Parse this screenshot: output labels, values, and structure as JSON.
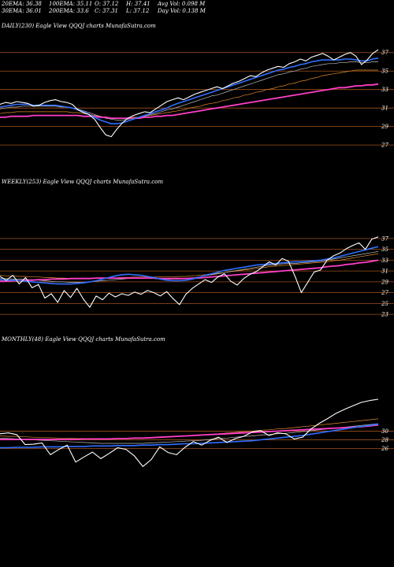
{
  "header": {
    "ema20": "20EMA: 36.38",
    "ema100": "100EMA: 35.11",
    "open": "O: 37.12",
    "high": "H: 37.41",
    "avgvol": "Avg Vol: 0.098 M",
    "ema30": "30EMA: 36.01",
    "ema200": "200EMA: 33.6",
    "close": "C: 37.31",
    "low": "L: 37.12",
    "dayvol": "Day Vol: 0.138 M"
  },
  "colors": {
    "background": "#000000",
    "price": "#ffffff",
    "ema_blue": "#2f6fff",
    "ema_magenta": "#ff3ec8",
    "ema_orange": "#e08a2c",
    "ema_grey": "#bfbfbf",
    "level_line": "#a0521e"
  },
  "chart_data": [
    {
      "type": "line",
      "title": "DAILY(230) Eagle View QQQJ charts MunafaSutra.com",
      "yticks": [
        37,
        35,
        33,
        31,
        29,
        27
      ],
      "ylim": [
        26.5,
        38
      ],
      "series": [
        {
          "role": "price",
          "values": [
            31.4,
            31.6,
            31.5,
            31.7,
            31.6,
            31.5,
            31.2,
            31.3,
            31.6,
            31.8,
            31.9,
            31.7,
            31.6,
            31.4,
            30.8,
            30.5,
            30.3,
            29.8,
            28.9,
            28.1,
            27.9,
            28.7,
            29.4,
            29.9,
            30.2,
            30.4,
            30.6,
            30.5,
            30.9,
            31.3,
            31.7,
            31.9,
            32.1,
            31.9,
            32.2,
            32.5,
            32.7,
            32.9,
            33.1,
            33.3,
            33.1,
            33.4,
            33.7,
            33.9,
            34.2,
            34.5,
            34.4,
            34.8,
            35.1,
            35.3,
            35.5,
            35.4,
            35.8,
            36.0,
            36.3,
            36.1,
            36.5,
            36.7,
            36.9,
            36.6,
            36.2,
            36.5,
            36.8,
            37.0,
            36.6,
            35.7,
            36.2,
            36.9,
            37.3
          ]
        },
        {
          "role": "ema_blue",
          "values": [
            31.1,
            31.2,
            31.3,
            31.4,
            31.4,
            31.4,
            31.3,
            31.3,
            31.3,
            31.3,
            31.3,
            31.2,
            31.1,
            31.0,
            30.8,
            30.6,
            30.3,
            30.0,
            29.7,
            29.5,
            29.3,
            29.3,
            29.4,
            29.6,
            29.8,
            30.0,
            30.2,
            30.4,
            30.6,
            30.8,
            31.0,
            31.3,
            31.5,
            31.7,
            31.9,
            32.1,
            32.3,
            32.5,
            32.7,
            32.9,
            33.1,
            33.3,
            33.5,
            33.7,
            33.9,
            34.1,
            34.3,
            34.5,
            34.7,
            34.9,
            35.1,
            35.2,
            35.4,
            35.5,
            35.7,
            35.8,
            36.0,
            36.1,
            36.2,
            36.2,
            36.2,
            36.2,
            36.3,
            36.3,
            36.2,
            36.1,
            36.1,
            36.3,
            36.4
          ]
        },
        {
          "role": "ema_grey",
          "values": [
            30.9,
            31.0,
            31.1,
            31.1,
            31.2,
            31.2,
            31.2,
            31.2,
            31.2,
            31.2,
            31.2,
            31.1,
            31.1,
            31.0,
            30.9,
            30.7,
            30.5,
            30.3,
            30.1,
            29.9,
            29.8,
            29.7,
            29.7,
            29.8,
            29.9,
            30.0,
            30.1,
            30.3,
            30.4,
            30.6,
            30.8,
            30.9,
            31.1,
            31.3,
            31.5,
            31.7,
            31.9,
            32.1,
            32.3,
            32.4,
            32.6,
            32.8,
            33.0,
            33.2,
            33.4,
            33.6,
            33.8,
            34.0,
            34.2,
            34.4,
            34.6,
            34.7,
            34.9,
            35.0,
            35.2,
            35.3,
            35.5,
            35.6,
            35.7,
            35.8,
            35.8,
            35.9,
            35.9,
            36.0,
            36.0,
            35.9,
            35.9,
            36.0,
            36.0
          ]
        },
        {
          "role": "ema_orange",
          "values": [
            30.4,
            30.5,
            30.5,
            30.6,
            30.6,
            30.6,
            30.6,
            30.6,
            30.6,
            30.6,
            30.6,
            30.6,
            30.6,
            30.5,
            30.5,
            30.4,
            30.3,
            30.2,
            30.1,
            30.0,
            29.9,
            29.9,
            29.9,
            29.9,
            30.0,
            30.0,
            30.1,
            30.2,
            30.3,
            30.4,
            30.5,
            30.6,
            30.7,
            30.8,
            31.0,
            31.1,
            31.2,
            31.4,
            31.5,
            31.6,
            31.8,
            31.9,
            32.1,
            32.2,
            32.4,
            32.5,
            32.7,
            32.8,
            33.0,
            33.1,
            33.3,
            33.4,
            33.6,
            33.7,
            33.9,
            34.0,
            34.2,
            34.3,
            34.5,
            34.6,
            34.7,
            34.8,
            34.9,
            35.0,
            35.1,
            35.1,
            35.1,
            35.1,
            35.1
          ]
        },
        {
          "role": "ema_magenta",
          "values": [
            30.0,
            30.0,
            30.1,
            30.1,
            30.1,
            30.1,
            30.2,
            30.2,
            30.2,
            30.2,
            30.2,
            30.2,
            30.2,
            30.2,
            30.2,
            30.1,
            30.1,
            30.1,
            30.0,
            30.0,
            29.9,
            29.9,
            29.9,
            29.9,
            29.9,
            29.9,
            30.0,
            30.0,
            30.1,
            30.1,
            30.2,
            30.2,
            30.3,
            30.4,
            30.5,
            30.6,
            30.7,
            30.8,
            30.9,
            31.0,
            31.1,
            31.2,
            31.3,
            31.4,
            31.5,
            31.6,
            31.7,
            31.8,
            31.9,
            32.0,
            32.1,
            32.2,
            32.3,
            32.4,
            32.5,
            32.6,
            32.7,
            32.8,
            32.9,
            33.0,
            33.1,
            33.2,
            33.2,
            33.3,
            33.4,
            33.4,
            33.5,
            33.5,
            33.6
          ]
        }
      ]
    },
    {
      "type": "line",
      "title": "WEEKLY(253) Eagle View QQQJ charts MunafaSutra.com",
      "yticks": [
        37,
        35,
        33,
        31,
        29,
        27,
        25,
        23
      ],
      "ylim": [
        22,
        38
      ],
      "series": [
        {
          "role": "price",
          "values": [
            30.0,
            29.3,
            30.2,
            28.6,
            29.8,
            27.9,
            28.5,
            26.0,
            26.8,
            25.2,
            27.4,
            26.1,
            27.8,
            25.8,
            24.3,
            26.4,
            25.7,
            26.9,
            26.2,
            26.8,
            26.5,
            27.1,
            26.7,
            27.4,
            27.0,
            26.4,
            27.2,
            25.9,
            24.8,
            26.7,
            27.8,
            28.6,
            29.4,
            28.9,
            29.9,
            30.5,
            29.1,
            28.4,
            29.6,
            30.4,
            30.9,
            31.8,
            32.7,
            32.1,
            33.3,
            32.8,
            30.1,
            27.0,
            28.9,
            30.8,
            31.2,
            33.0,
            33.8,
            34.3,
            35.1,
            35.7,
            36.2,
            35.0,
            36.9,
            37.3
          ]
        },
        {
          "role": "ema_blue",
          "values": [
            29.4,
            29.3,
            29.3,
            29.2,
            29.1,
            29.0,
            28.9,
            28.8,
            28.7,
            28.6,
            28.6,
            28.6,
            28.7,
            28.8,
            29.0,
            29.2,
            29.5,
            29.8,
            30.1,
            30.3,
            30.4,
            30.3,
            30.2,
            30.0,
            29.8,
            29.5,
            29.3,
            29.2,
            29.2,
            29.3,
            29.5,
            29.8,
            30.2,
            30.5,
            30.8,
            31.1,
            31.3,
            31.5,
            31.7,
            31.9,
            32.1,
            32.2,
            32.3,
            32.4,
            32.5,
            32.6,
            32.7,
            32.7,
            32.8,
            32.9,
            33.0,
            33.2,
            33.4,
            33.7,
            34.0,
            34.3,
            34.6,
            34.9,
            35.2,
            35.5
          ]
        },
        {
          "role": "ema_grey",
          "values": [
            29.6,
            29.6,
            29.5,
            29.5,
            29.4,
            29.4,
            29.3,
            29.2,
            29.1,
            29.0,
            29.0,
            28.9,
            28.9,
            28.9,
            29.0,
            29.1,
            29.2,
            29.3,
            29.4,
            29.5,
            29.6,
            29.6,
            29.6,
            29.6,
            29.6,
            29.5,
            29.5,
            29.5,
            29.5,
            29.6,
            29.7,
            29.9,
            30.1,
            30.3,
            30.5,
            30.7,
            30.9,
            31.1,
            31.3,
            31.5,
            31.7,
            31.9,
            32.1,
            32.2,
            32.3,
            32.4,
            32.4,
            32.5,
            32.6,
            32.7,
            32.8,
            33.0,
            33.2,
            33.4,
            33.6,
            33.8,
            34.0,
            34.2,
            34.4,
            34.6
          ]
        },
        {
          "role": "ema_orange",
          "values": [
            30.2,
            30.1,
            30.1,
            30.0,
            30.0,
            29.9,
            29.9,
            29.8,
            29.8,
            29.7,
            29.7,
            29.6,
            29.6,
            29.6,
            29.6,
            29.6,
            29.6,
            29.7,
            29.7,
            29.8,
            29.8,
            29.9,
            29.9,
            29.9,
            29.9,
            29.9,
            29.9,
            29.9,
            30.0,
            30.0,
            30.1,
            30.2,
            30.3,
            30.4,
            30.6,
            30.7,
            30.9,
            31.0,
            31.2,
            31.3,
            31.5,
            31.6,
            31.8,
            31.9,
            32.0,
            32.1,
            32.2,
            32.3,
            32.4,
            32.5,
            32.6,
            32.7,
            32.9,
            33.0,
            33.2,
            33.4,
            33.6,
            33.8,
            34.0,
            34.2
          ]
        },
        {
          "role": "ema_magenta",
          "values": [
            29.1,
            29.1,
            29.2,
            29.2,
            29.3,
            29.3,
            29.4,
            29.4,
            29.5,
            29.5,
            29.5,
            29.6,
            29.6,
            29.6,
            29.6,
            29.7,
            29.7,
            29.7,
            29.7,
            29.7,
            29.7,
            29.7,
            29.7,
            29.7,
            29.7,
            29.6,
            29.6,
            29.6,
            29.6,
            29.6,
            29.7,
            29.7,
            29.8,
            29.9,
            30.0,
            30.1,
            30.2,
            30.3,
            30.4,
            30.5,
            30.6,
            30.7,
            30.8,
            30.9,
            31.0,
            31.1,
            31.2,
            31.3,
            31.4,
            31.5,
            31.6,
            31.8,
            31.9,
            32.0,
            32.2,
            32.3,
            32.5,
            32.6,
            32.8,
            33.0
          ]
        }
      ]
    },
    {
      "type": "line",
      "title": "MONTHLY(48) Eagle View QQQJ charts MunafaSutra.com",
      "yticks": [
        30,
        28,
        26
      ],
      "ylim": [
        18,
        40
      ],
      "series": [
        {
          "role": "price",
          "values": [
            29.4,
            29.6,
            29.2,
            26.9,
            27.0,
            27.3,
            24.6,
            25.8,
            26.8,
            22.9,
            24.1,
            25.2,
            23.7,
            24.9,
            26.2,
            25.8,
            24.3,
            21.9,
            23.5,
            26.4,
            25.1,
            24.6,
            26.3,
            27.6,
            26.8,
            27.9,
            28.6,
            27.4,
            28.3,
            28.8,
            29.8,
            30.1,
            29.0,
            29.6,
            29.4,
            28.2,
            28.6,
            30.5,
            31.8,
            32.9,
            34.1,
            35.0,
            35.8,
            36.6,
            37.0,
            37.3
          ]
        },
        {
          "role": "ema_blue",
          "values": [
            26.2,
            26.2,
            26.3,
            26.3,
            26.3,
            26.4,
            26.4,
            26.4,
            26.5,
            26.5,
            26.5,
            26.6,
            26.6,
            26.6,
            26.7,
            26.7,
            26.7,
            26.8,
            26.8,
            26.9,
            26.9,
            27.0,
            27.1,
            27.1,
            27.2,
            27.3,
            27.4,
            27.5,
            27.6,
            27.7,
            27.8,
            28.0,
            28.2,
            28.4,
            28.6,
            28.8,
            29.0,
            29.3,
            29.6,
            29.9,
            30.2,
            30.5,
            30.8,
            31.1,
            31.3,
            31.6
          ]
        },
        {
          "role": "ema_grey",
          "values": [
            28.4,
            28.3,
            28.2,
            28.1,
            28.0,
            27.9,
            27.8,
            27.7,
            27.6,
            27.5,
            27.4,
            27.3,
            27.2,
            27.2,
            27.2,
            27.2,
            27.2,
            27.2,
            27.3,
            27.4,
            27.5,
            27.6,
            27.7,
            27.8,
            27.9,
            28.1,
            28.3,
            28.4,
            28.6,
            28.8,
            28.9,
            29.1,
            29.2,
            29.4,
            29.5,
            29.7,
            29.9,
            30.1,
            30.3,
            30.5,
            30.7,
            30.9,
            31.1,
            31.3,
            31.5,
            31.7
          ]
        },
        {
          "role": "ema_orange",
          "values": [
            28.9,
            28.8,
            28.8,
            28.7,
            28.6,
            28.5,
            28.5,
            28.4,
            28.4,
            28.3,
            28.3,
            28.3,
            28.3,
            28.3,
            28.3,
            28.3,
            28.4,
            28.4,
            28.5,
            28.6,
            28.7,
            28.8,
            28.9,
            29.0,
            29.1,
            29.3,
            29.4,
            29.6,
            29.7,
            29.9,
            30.0,
            30.2,
            30.3,
            30.5,
            30.6,
            30.8,
            31.0,
            31.2,
            31.4,
            31.6,
            31.8,
            32.0,
            32.2,
            32.4,
            32.6,
            32.8
          ]
        },
        {
          "role": "ema_magenta",
          "values": [
            28.1,
            28.1,
            28.1,
            28.1,
            28.1,
            28.1,
            28.1,
            28.1,
            28.1,
            28.1,
            28.2,
            28.2,
            28.2,
            28.2,
            28.3,
            28.3,
            28.4,
            28.4,
            28.5,
            28.6,
            28.7,
            28.8,
            28.9,
            29.0,
            29.1,
            29.2,
            29.3,
            29.4,
            29.5,
            29.6,
            29.7,
            29.8,
            29.9,
            30.0,
            30.1,
            30.2,
            30.3,
            30.4,
            30.5,
            30.6,
            30.7,
            30.8,
            30.9,
            31.0,
            31.2,
            31.4
          ]
        }
      ]
    }
  ]
}
